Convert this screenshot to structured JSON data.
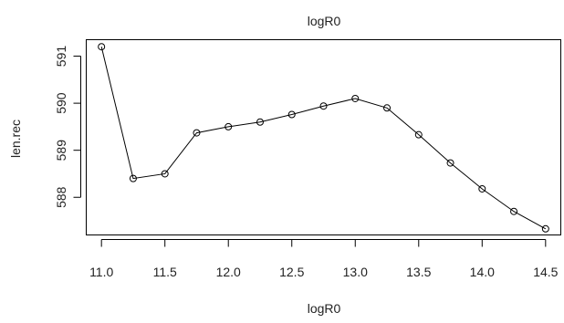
{
  "chart_data": {
    "type": "line",
    "title": "logR0",
    "xlabel": "logR0",
    "ylabel": "len.rec",
    "x": [
      11.0,
      11.25,
      11.5,
      11.75,
      12.0,
      12.25,
      12.5,
      12.75,
      13.0,
      13.25,
      13.5,
      13.75,
      14.0,
      14.25,
      14.5
    ],
    "series": [
      {
        "values": [
          591.2,
          588.4,
          588.5,
          589.37,
          589.5,
          589.6,
          589.76,
          589.94,
          590.1,
          589.9,
          589.33,
          588.73,
          588.18,
          587.7,
          587.33
        ]
      }
    ],
    "xlim": [
      10.88,
      14.62
    ],
    "ylim": [
      587.2,
      591.35
    ],
    "xticks": [
      "11.0",
      "11.5",
      "12.0",
      "12.5",
      "13.0",
      "13.5",
      "14.0",
      "14.5"
    ],
    "yticks": [
      "588",
      "589",
      "590",
      "591"
    ],
    "grid": false,
    "marker": "open-circle",
    "line_color": "#000000"
  }
}
